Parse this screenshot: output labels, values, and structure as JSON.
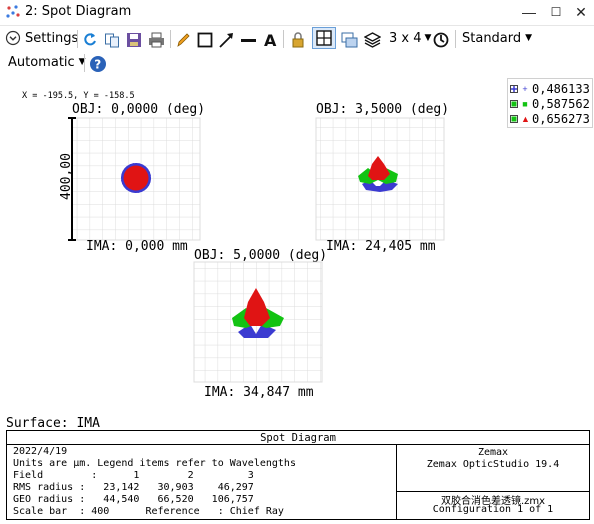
{
  "window": {
    "title": "2: Spot Diagram",
    "min_label": "—",
    "max_label": "☐",
    "close_label": "✕"
  },
  "toolbar": {
    "settings_label": "Settings",
    "layout_label": "3 x 4",
    "style_label": "Standard",
    "mode_label": "Automatic"
  },
  "cursor": {
    "readout": "X = -195.5, Y = -158.5"
  },
  "legend": {
    "items": [
      {
        "label": "0,486133",
        "color": "#3b3bd1"
      },
      {
        "label": "0,587562",
        "color": "#13c313"
      },
      {
        "label": "0,656273",
        "color": "#e01414"
      }
    ]
  },
  "spots": [
    {
      "obj": "OBJ: 0,0000 (deg)",
      "ima": "IMA: 0,000 mm"
    },
    {
      "obj": "OBJ: 3,5000 (deg)",
      "ima": "IMA: 24,405 mm"
    },
    {
      "obj": "OBJ: 5,0000 (deg)",
      "ima": "IMA: 34,847 mm"
    }
  ],
  "scale_bar": {
    "label": "400,00"
  },
  "surface": "Surface: IMA",
  "info": {
    "header": "Spot Diagram",
    "lines": [
      "2022/4/19",
      "Units are µm. Legend items refer to Wavelengths",
      "Field        :      1        2         3",
      "RMS radius :   23,142   30,903    46,297",
      "GEO radius :   44,540   66,520   106,757",
      "Scale bar  : 400      Reference   : Chief Ray"
    ],
    "company": "Zemax",
    "product": "Zemax OpticStudio 19.4",
    "file": "双胶合消色差透镜.zmx",
    "config": "Configuration 1 of 1"
  }
}
